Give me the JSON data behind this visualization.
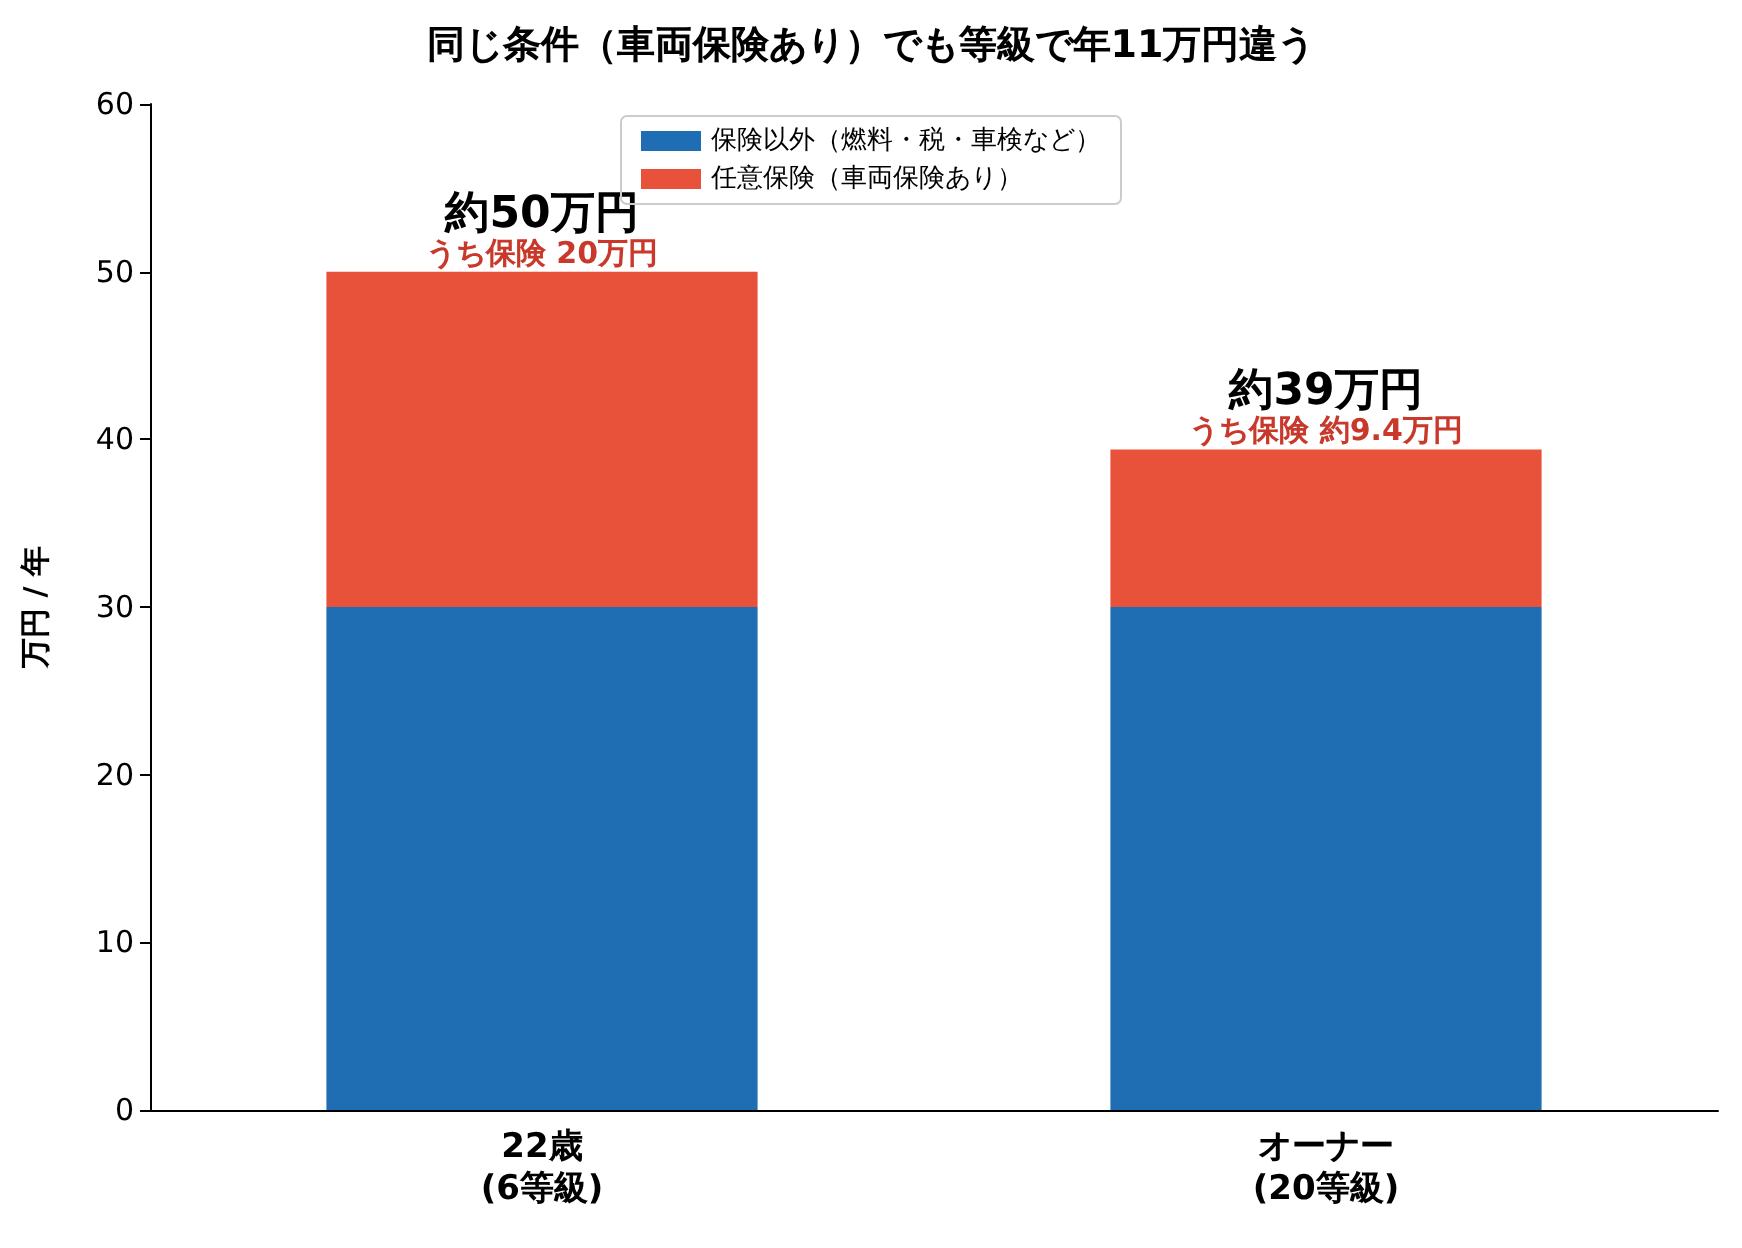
{
  "chart_data": {
    "type": "bar",
    "title": "同じ条件（車両保険あり）でも等級で年11万円違う",
    "ylabel": "万円 / 年",
    "categories": [
      "22歳\n(6等級)",
      "オーナー\n(20等級)"
    ],
    "series": [
      {
        "name": "保険以外（燃料・税・車検など）",
        "color": "#1f6eb4",
        "values": [
          30,
          30
        ]
      },
      {
        "name": "任意保険（車両保険あり）",
        "color": "#e8523a",
        "values": [
          20,
          9.4
        ]
      }
    ],
    "stacked": true,
    "totals": [
      "約50万円",
      "約39万円"
    ],
    "annotations": [
      {
        "text": "うち保険 20万円",
        "x": "22歳\n(6等級)",
        "y": 50
      },
      {
        "text": "うち保険 約9.4万円",
        "x": "オーナー\n(20等級)",
        "y": 39.4
      }
    ],
    "ylim": [
      0,
      60
    ],
    "yticks": [
      0,
      10,
      20,
      30,
      40,
      50,
      60
    ],
    "grid": false,
    "legend": "top"
  }
}
